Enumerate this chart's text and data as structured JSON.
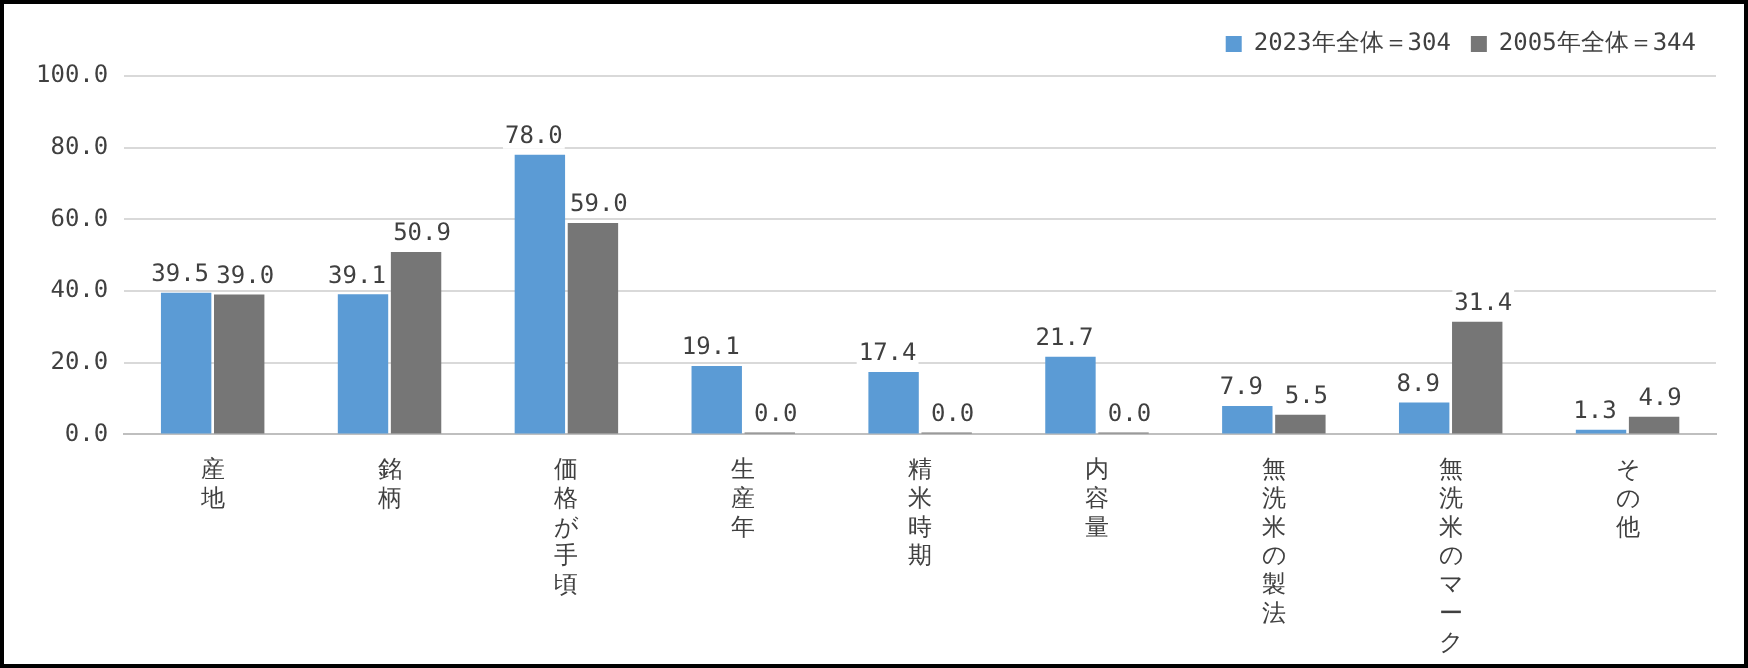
{
  "chart_data": {
    "type": "bar",
    "categories": [
      "産地",
      "銘柄",
      "価格が手頃",
      "生産年",
      "精米時期",
      "内容量",
      "無洗米の製法",
      "無洗米のマーク",
      "その他"
    ],
    "series": [
      {
        "name": "2023年全体＝304",
        "color": "#5b9bd5",
        "values": [
          39.5,
          39.1,
          78.0,
          19.1,
          17.4,
          21.7,
          7.9,
          8.9,
          1.3
        ],
        "value_labels": [
          "39.5",
          "39.1",
          "78.0",
          "19.1",
          "17.4",
          "21.7",
          "7.9",
          "8.9",
          "1.3"
        ]
      },
      {
        "name": "2005年全体＝344",
        "color": "#767676",
        "values": [
          39.0,
          50.9,
          59.0,
          0.0,
          0.0,
          0.0,
          5.5,
          31.4,
          4.9
        ],
        "value_labels": [
          "39.0",
          "50.9",
          "59.0",
          "0.0",
          "0.0",
          "0.0",
          "5.5",
          "31.4",
          "4.9"
        ]
      }
    ],
    "ylim": [
      0,
      100
    ],
    "yticks": [
      {
        "value": 0,
        "label": "0.0"
      },
      {
        "value": 20,
        "label": "20.0"
      },
      {
        "value": 40,
        "label": "40.0"
      },
      {
        "value": 60,
        "label": "60.0"
      },
      {
        "value": 80,
        "label": "80.0"
      },
      {
        "value": 100,
        "label": "100.0"
      }
    ],
    "grid": "y",
    "legend": "top right"
  }
}
